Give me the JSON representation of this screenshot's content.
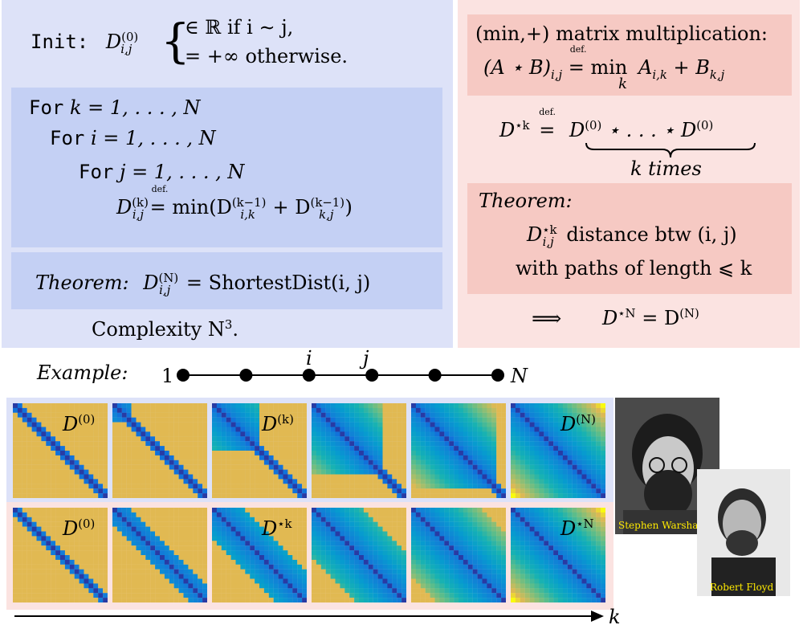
{
  "left": {
    "init_kw": "Init:",
    "init_sym": "D",
    "init_sup": "(0)",
    "init_sub": "i,j",
    "init_case1": "∈ ℝ if i ∼ j,",
    "init_case2": "= +∞ otherwise.",
    "loop_k_kw": "For",
    "loop_k": "k = 1, . . . , N",
    "loop_i_kw": "For",
    "loop_i": "i = 1, . . . , N",
    "loop_j_kw": "For",
    "loop_j": "j = 1, . . . , N",
    "update_lhs": "D",
    "update_lhs_sup": "(k)",
    "update_lhs_sub": "i,j",
    "def_mark": "def.",
    "update_rhs": "= min(D",
    "update_rhs_sup1": "(k−1)",
    "update_rhs_sub1": "i,k",
    "update_rhs_mid": " + D",
    "update_rhs_sup2": "(k−1)",
    "update_rhs_sub2": "k,j",
    "update_rhs_end": ")",
    "theorem_label": "Theorem:",
    "theorem_sym": "D",
    "theorem_sup": "(N)",
    "theorem_sub": "i,j",
    "theorem_rhs": "= ShortestDist(i, j)",
    "complexity": "Complexity N",
    "complexity_sup": "3",
    "complexity_end": "."
  },
  "right": {
    "minplus_title": "(min,+) matrix multiplication:",
    "minplus_lhs": "(A ⋆ B)",
    "minplus_lhs_sub": "i,j",
    "def_mark": "def.",
    "minplus_rhs": "= min",
    "minplus_min_sub": "k",
    "minplus_rhs2": "A",
    "minplus_a_sub": "i,k",
    "minplus_rhs3": "+ B",
    "minplus_b_sub": "k,j",
    "power_lhs": "D",
    "power_lhs_sup": "⋆k",
    "power_def": "def.",
    "power_eq": "=",
    "power_rhs": "D",
    "power_rhs_sup1": "(0)",
    "power_rhs_mid": " ⋆ . . . ⋆ D",
    "power_rhs_sup2": "(0)",
    "power_brace_label": "k times",
    "theorem_label": "Theorem:",
    "theorem_sym": "D",
    "theorem_sup": "⋆k",
    "theorem_sub": "i,j",
    "theorem_line1": "distance btw (i, j)",
    "theorem_line2": "with paths of length ⩽ k",
    "implies": "⟹",
    "conclusion_lhs": "D",
    "conclusion_sup1": "⋆N",
    "conclusion_mid": " = D",
    "conclusion_sup2": "(N)"
  },
  "example": {
    "label": "Example:",
    "start": "1",
    "end": "N",
    "node_i": "i",
    "node_j": "j",
    "nodes": 6
  },
  "heatmaps": {
    "top_labels": [
      {
        "sym": "D",
        "sup": "(0)"
      },
      {
        "sym": "",
        "sup": ""
      },
      {
        "sym": "D",
        "sup": "(k)"
      },
      {
        "sym": "",
        "sup": ""
      },
      {
        "sym": "",
        "sup": ""
      },
      {
        "sym": "D",
        "sup": "(N)"
      }
    ],
    "bottom_labels": [
      {
        "sym": "D",
        "sup": "(0)"
      },
      {
        "sym": "",
        "sup": ""
      },
      {
        "sym": "D",
        "sup": "⋆k"
      },
      {
        "sym": "",
        "sup": ""
      },
      {
        "sym": "",
        "sup": ""
      },
      {
        "sym": "D",
        "sup": "⋆N"
      }
    ],
    "top_stage": [
      0,
      0.15,
      0.45,
      0.75,
      0.9,
      1.0
    ],
    "bottom_stage": [
      1,
      3,
      6,
      10,
      14,
      20
    ],
    "grid": 20
  },
  "photos": {
    "warshall_caption": "Stephen Warshall",
    "floyd_caption": "Robert Floyd"
  },
  "axis": {
    "label": "k"
  }
}
